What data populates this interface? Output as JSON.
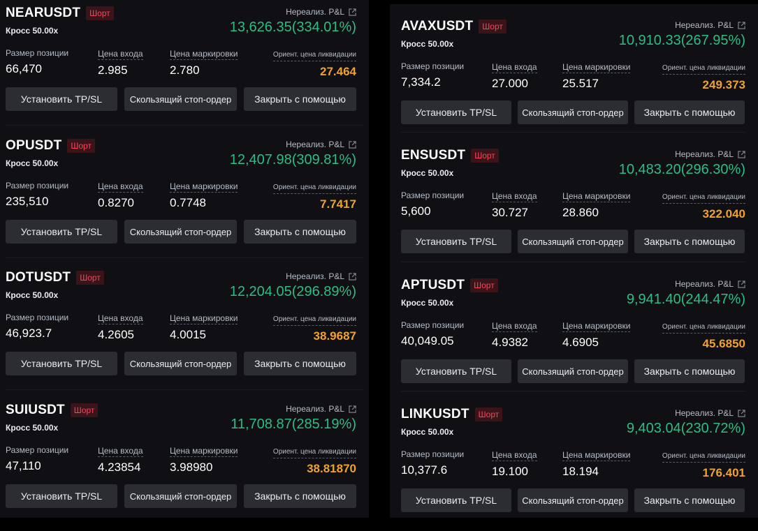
{
  "colors": {
    "profit": "#2ebd85",
    "short_badge": "#f6465d",
    "liq_price": "#f0a22e"
  },
  "labels": {
    "pnl": "Нереализ. P&L",
    "size": "Размер позиции",
    "entry": "Цена входа",
    "mark": "Цена маркировки",
    "liq": "Ориент. цена ликвидации",
    "btn_tpsl": "Установить TP/SL",
    "btn_trailing": "Скользящий стоп-ордер",
    "btn_close": "Закрыть с помощью"
  },
  "positions_left": [
    {
      "symbol": "NEARUSDT",
      "side": "Шорт",
      "leverage": "Кросс 50.00x",
      "pnl": "13,626.35(334.01%)",
      "size": "66,470",
      "entry": "2.985",
      "mark": "2.780",
      "liq": "27.464"
    },
    {
      "symbol": "OPUSDT",
      "side": "Шорт",
      "leverage": "Кросс 50.00x",
      "pnl": "12,407.98(309.81%)",
      "size": "235,510",
      "entry": "0.8270",
      "mark": "0.7748",
      "liq": "7.7417"
    },
    {
      "symbol": "DOTUSDT",
      "side": "Шорт",
      "leverage": "Кросс 50.00x",
      "pnl": "12,204.05(296.89%)",
      "size": "46,923.7",
      "entry": "4.2605",
      "mark": "4.0015",
      "liq": "38.9687"
    },
    {
      "symbol": "SUIUSDT",
      "side": "Шорт",
      "leverage": "Кросс 50.00x",
      "pnl": "11,708.87(285.19%)",
      "size": "47,110",
      "entry": "4.23854",
      "mark": "3.98980",
      "liq": "38.81870"
    }
  ],
  "positions_right": [
    {
      "symbol": "AVAXUSDT",
      "side": "Шорт",
      "leverage": "Кросс 50.00x",
      "pnl": "10,910.33(267.95%)",
      "size": "7,334.2",
      "entry": "27.000",
      "mark": "25.517",
      "liq": "249.373"
    },
    {
      "symbol": "ENSUSDT",
      "side": "Шорт",
      "leverage": "Кросс 50.00x",
      "pnl": "10,483.20(296.30%)",
      "size": "5,600",
      "entry": "30.727",
      "mark": "28.860",
      "liq": "322.040"
    },
    {
      "symbol": "APTUSDT",
      "side": "Шорт",
      "leverage": "Кросс 50.00x",
      "pnl": "9,941.40(244.47%)",
      "size": "40,049.05",
      "entry": "4.9382",
      "mark": "4.6905",
      "liq": "45.6850"
    },
    {
      "symbol": "LINKUSDT",
      "side": "Шорт",
      "leverage": "Кросс 50.00x",
      "pnl": "9,403.04(230.72%)",
      "size": "10,377.6",
      "entry": "19.100",
      "mark": "18.194",
      "liq": "176.401"
    }
  ]
}
